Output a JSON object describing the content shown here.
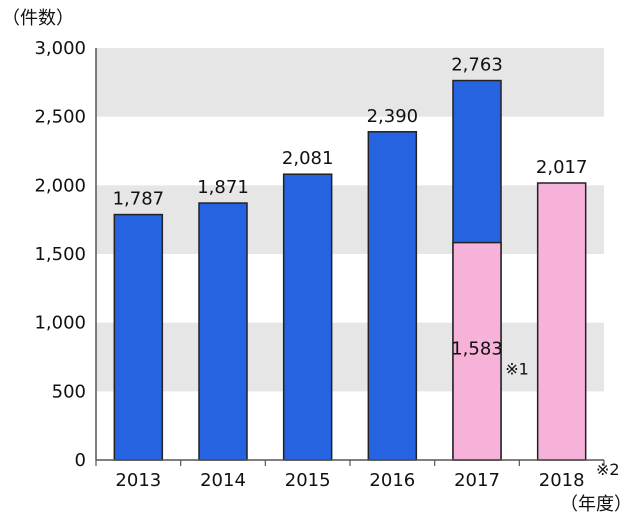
{
  "chart_data": {
    "type": "bar",
    "unit_top": "（件数）",
    "unit_bottom": "（年度）",
    "categories": [
      "2013",
      "2014",
      "2015",
      "2016",
      "2017",
      "2018"
    ],
    "yticks": [
      "0",
      "500",
      "1,000",
      "1,500",
      "2,000",
      "2,500",
      "3,000"
    ],
    "ylim": [
      0,
      3000
    ],
    "grid_bands": "alternating grey",
    "colors": {
      "blue": "#2563e0",
      "pink": "#f7b2d9",
      "band": "#e6e6e6",
      "axis": "#555555"
    },
    "bars": [
      {
        "x": "2013",
        "value": 1787,
        "label": "1,787",
        "color": "blue"
      },
      {
        "x": "2014",
        "value": 1871,
        "label": "1,871",
        "color": "blue"
      },
      {
        "x": "2015",
        "value": 2081,
        "label": "2,081",
        "color": "blue"
      },
      {
        "x": "2016",
        "value": 2390,
        "label": "2,390",
        "color": "blue"
      },
      {
        "x": "2017",
        "value": 2763,
        "label": "2,763",
        "color": "blue",
        "inner": {
          "value": 1583,
          "label": "1,583",
          "note": "※1",
          "color": "pink"
        }
      },
      {
        "x": "2018",
        "value": 2017,
        "label": "2,017",
        "color": "pink"
      }
    ],
    "xnote": "※2"
  }
}
